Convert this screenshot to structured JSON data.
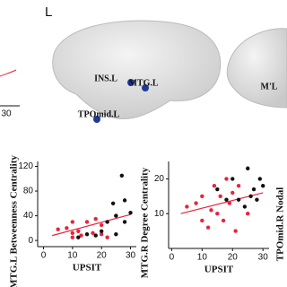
{
  "panel_label": "L",
  "brain": {
    "nodes": [
      {
        "label": "INS.L"
      },
      {
        "label": "MTG.L"
      },
      {
        "label": "TPOmid.L"
      },
      {
        "label": "M'L"
      }
    ]
  },
  "left_fragment": {
    "tick_label": "30"
  },
  "right_fragment": {
    "axis_label": "TPOmid.R Nodal"
  },
  "chart_data": [
    {
      "type": "scatter",
      "x_label": "UPSIT",
      "y_label": "MTG.L Betweenness Centrality",
      "xlim": [
        -2,
        32
      ],
      "ylim": [
        -10,
        128
      ],
      "xticks": [
        0,
        10,
        20,
        30
      ],
      "yticks": [
        0,
        40,
        80,
        120
      ],
      "series": [
        {
          "color": "#e8243c",
          "x": [
            8,
            10,
            10,
            12,
            13,
            15,
            17,
            18,
            20,
            20,
            22,
            25,
            10,
            5
          ],
          "values": [
            20,
            12,
            5,
            15,
            8,
            30,
            12,
            35,
            25,
            10,
            5,
            40,
            30,
            18
          ]
        },
        {
          "color": "#111111",
          "x": [
            15,
            18,
            20,
            22,
            24,
            25,
            27,
            28,
            28,
            30,
            25,
            12
          ],
          "values": [
            10,
            8,
            15,
            30,
            60,
            40,
            105,
            30,
            65,
            45,
            10,
            5
          ]
        }
      ],
      "fit_line": {
        "color": "#e8243c",
        "x": [
          3,
          30
        ],
        "values": [
          8,
          42
        ]
      }
    },
    {
      "type": "scatter",
      "x_label": "UPSIT",
      "y_label": "MTG.R Degree Centrality",
      "xlim": [
        -1,
        32
      ],
      "ylim": [
        0,
        25
      ],
      "xticks": [
        0,
        10,
        20,
        30
      ],
      "yticks": [
        10,
        20
      ],
      "series": [
        {
          "color": "#e8243c",
          "x": [
            5,
            8,
            10,
            10,
            12,
            13,
            14,
            15,
            16,
            17,
            18,
            19,
            20,
            21,
            22,
            25
          ],
          "values": [
            12,
            13,
            15,
            8,
            6,
            11,
            18,
            10,
            15,
            8,
            20,
            13,
            16,
            5,
            18,
            10
          ]
        },
        {
          "color": "#111111",
          "x": [
            15,
            20,
            22,
            24,
            25,
            26,
            27,
            28,
            29,
            30,
            18
          ],
          "values": [
            17,
            20,
            14,
            12,
            23,
            15,
            17,
            14,
            20,
            18,
            14
          ]
        }
      ],
      "fit_line": {
        "color": "#e8243c",
        "x": [
          3,
          30
        ],
        "values": [
          10,
          16
        ]
      }
    }
  ]
}
